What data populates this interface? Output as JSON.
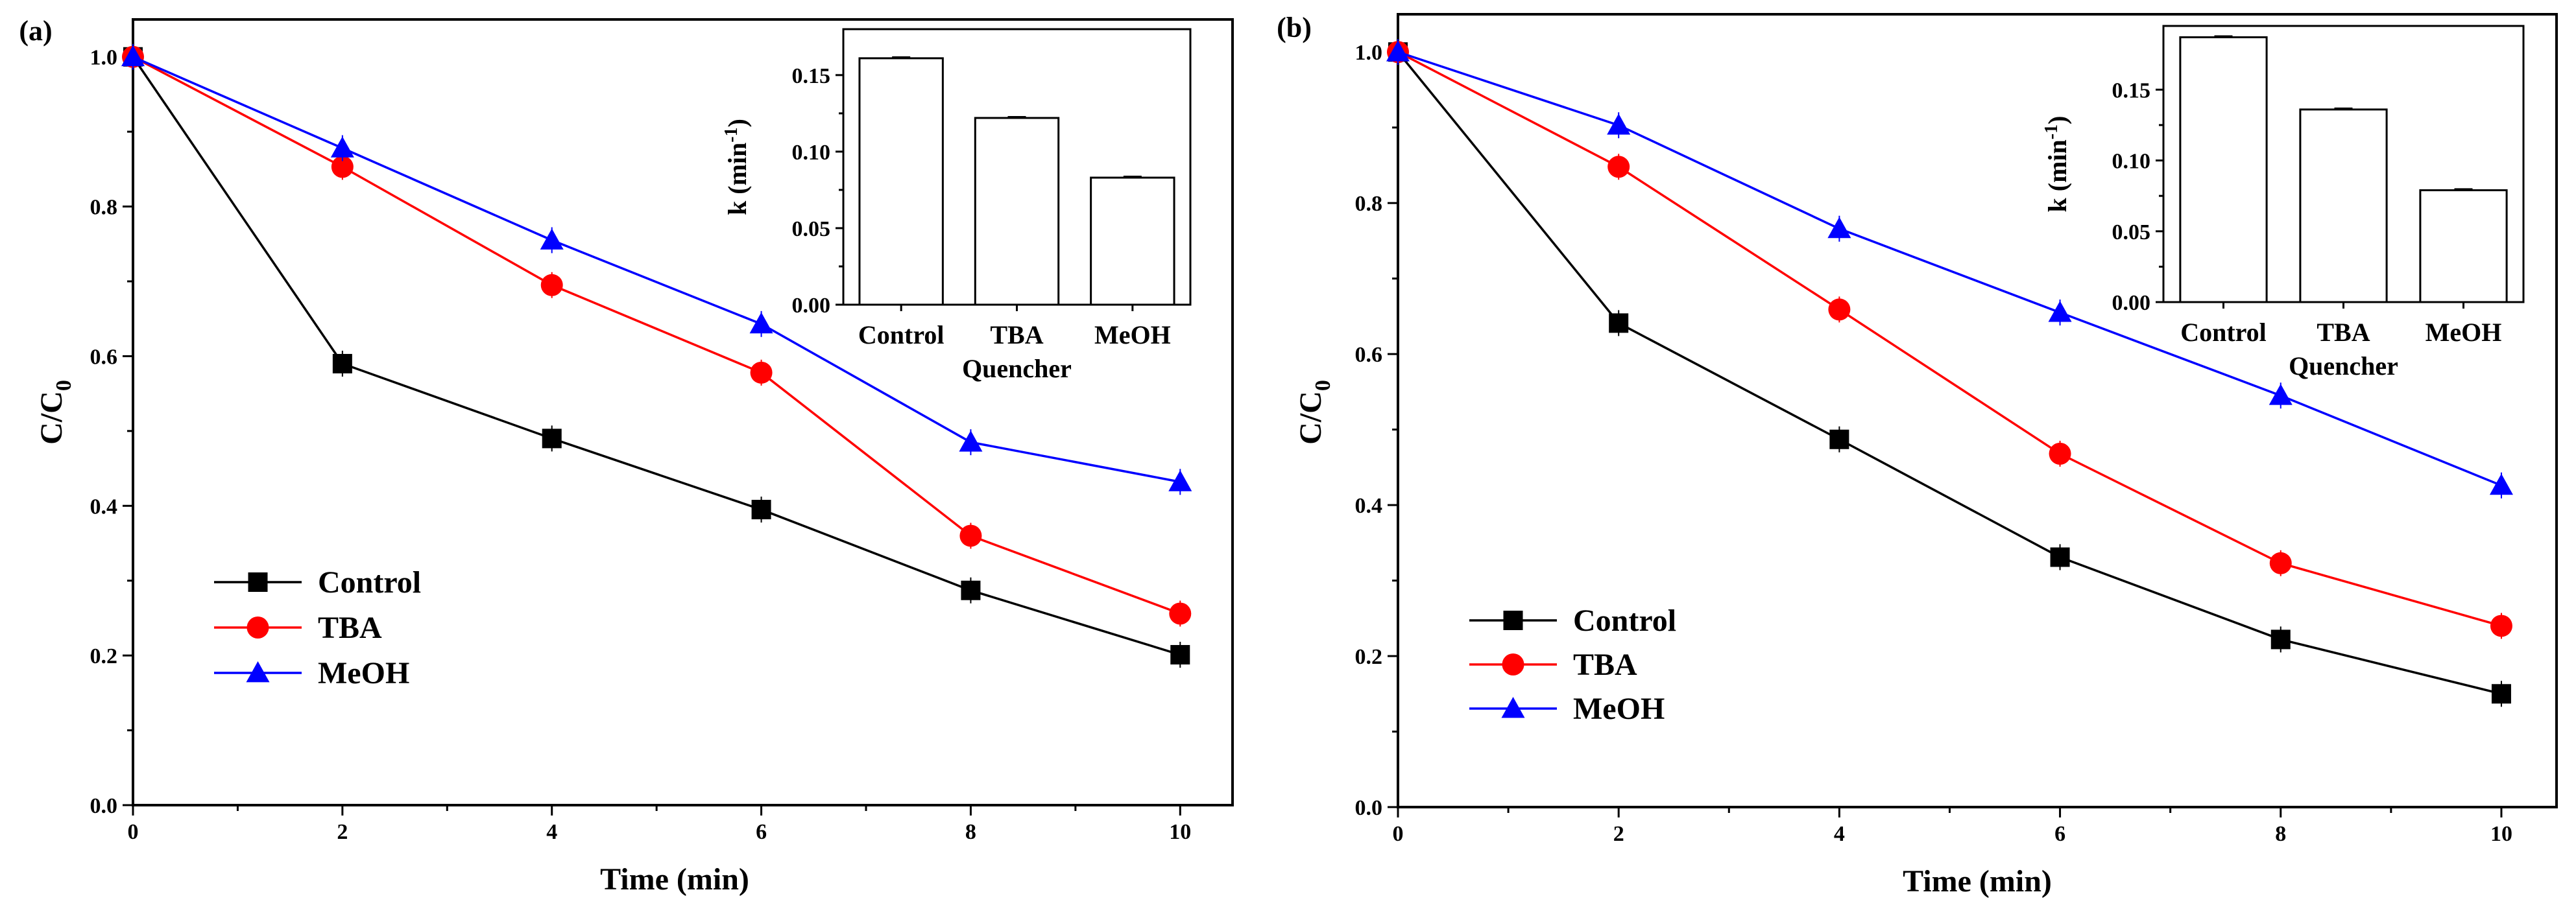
{
  "figure": {
    "panels": [
      {
        "label": "(a)"
      },
      {
        "label": "(b)"
      }
    ],
    "colors": {
      "control": "#000000",
      "tba": "#ff0000",
      "meoh": "#0000ff"
    }
  },
  "chart_data": [
    {
      "type": "line",
      "panel": "(a)",
      "title": "",
      "xlabel": "Time (min)",
      "ylabel": "C/C0",
      "ylabel_main": "C/C",
      "ylabel_sub": "0",
      "xlim": [
        0,
        10.5
      ],
      "ylim": [
        0,
        1.05
      ],
      "xticks": [
        0,
        2,
        4,
        6,
        8,
        10
      ],
      "xtick_labels": [
        "0",
        "2",
        "4",
        "6",
        "8",
        "10"
      ],
      "yticks": [
        0,
        0.2,
        0.4,
        0.6,
        0.8,
        1.0
      ],
      "ytick_labels": [
        "0.0",
        "0.2",
        "0.4",
        "0.6",
        "0.8",
        "1.0"
      ],
      "x": [
        0,
        2,
        4,
        6,
        8,
        10
      ],
      "series": [
        {
          "name": "Control",
          "values": [
            1.0,
            0.59,
            0.49,
            0.395,
            0.287,
            0.201
          ],
          "marker": "square",
          "color": "#000000"
        },
        {
          "name": "TBA",
          "values": [
            1.0,
            0.853,
            0.695,
            0.578,
            0.36,
            0.256
          ],
          "marker": "circle",
          "color": "#ff0000"
        },
        {
          "name": "MeOH",
          "values": [
            1.0,
            0.878,
            0.755,
            0.643,
            0.485,
            0.432
          ],
          "marker": "triangle",
          "color": "#0000ff"
        }
      ],
      "legend_position": "lower-left",
      "inset": {
        "type": "bar",
        "categories": [
          "Control",
          "TBA",
          "MeOH"
        ],
        "values": [
          0.161,
          0.122,
          0.083
        ],
        "xlabel": "Quencher",
        "ylabel": "k (min-1)",
        "ylabel_main": "k (min",
        "ylabel_sup": "-1",
        "ylabel_end": ")",
        "ylim": [
          0,
          0.18
        ],
        "yticks": [
          0,
          0.05,
          0.1,
          0.15
        ],
        "ytick_labels": [
          "0.00",
          "0.05",
          "0.10",
          "0.15"
        ]
      }
    },
    {
      "type": "line",
      "panel": "(b)",
      "title": "",
      "xlabel": "Time (min)",
      "ylabel": "C/C0",
      "ylabel_main": "C/C",
      "ylabel_sub": "0",
      "xlim": [
        0,
        10.5
      ],
      "ylim": [
        0,
        1.05
      ],
      "xticks": [
        0,
        2,
        4,
        6,
        8,
        10
      ],
      "xtick_labels": [
        "0",
        "2",
        "4",
        "6",
        "8",
        "10"
      ],
      "yticks": [
        0,
        0.2,
        0.4,
        0.6,
        0.8,
        1.0
      ],
      "ytick_labels": [
        "0.0",
        "0.2",
        "0.4",
        "0.6",
        "0.8",
        "1.0"
      ],
      "x": [
        0,
        2,
        4,
        6,
        8,
        10
      ],
      "series": [
        {
          "name": "Control",
          "values": [
            1.0,
            0.641,
            0.487,
            0.331,
            0.222,
            0.15
          ],
          "marker": "square",
          "color": "#000000"
        },
        {
          "name": "TBA",
          "values": [
            1.0,
            0.848,
            0.659,
            0.468,
            0.323,
            0.24
          ],
          "marker": "circle",
          "color": "#ff0000"
        },
        {
          "name": "MeOH",
          "values": [
            1.0,
            0.903,
            0.766,
            0.655,
            0.545,
            0.426
          ],
          "marker": "triangle",
          "color": "#0000ff"
        }
      ],
      "legend_position": "lower-left",
      "inset": {
        "type": "bar",
        "categories": [
          "Control",
          "TBA",
          "MeOH"
        ],
        "values": [
          0.187,
          0.136,
          0.079
        ],
        "xlabel": "Quencher",
        "ylabel": "k (min-1)",
        "ylabel_main": "k (min",
        "ylabel_sup": "-1",
        "ylabel_end": ")",
        "ylim": [
          0,
          0.195
        ],
        "yticks": [
          0,
          0.05,
          0.1,
          0.15
        ],
        "ytick_labels": [
          "0.00",
          "0.05",
          "0.10",
          "0.15"
        ]
      }
    }
  ]
}
